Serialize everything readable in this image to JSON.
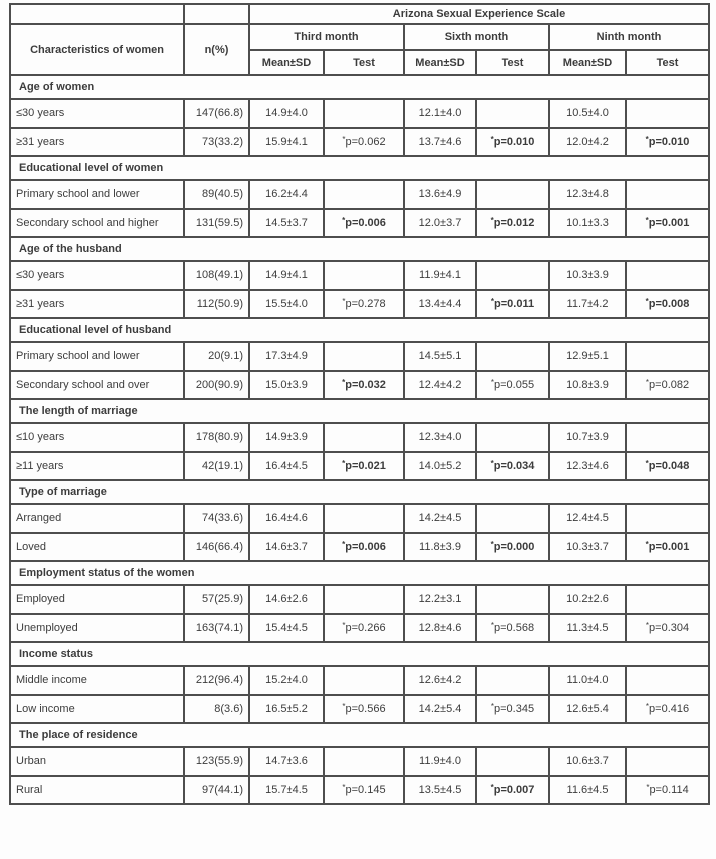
{
  "table": {
    "title": "Arizona Sexual Experience Scale",
    "col1_header": "Characteristics of women",
    "col2_header": "n(%)",
    "month_headers": [
      "Third month",
      "Sixth month",
      "Ninth month"
    ],
    "sub_headers": [
      "Mean±SD",
      "Test"
    ],
    "sections": [
      {
        "header": "Age of women",
        "rows": [
          {
            "label": "≤30 years",
            "n": "147(66.8)",
            "months": [
              {
                "mean": "14.9±4.0",
                "test": "",
                "test_bold": false
              },
              {
                "mean": "12.1±4.0",
                "test": "",
                "test_bold": false
              },
              {
                "mean": "10.5±4.0",
                "test": "",
                "test_bold": false
              }
            ]
          },
          {
            "label": "≥31 years",
            "n": "73(33.2)",
            "months": [
              {
                "mean": "15.9±4.1",
                "test": "*p=0.062",
                "test_bold": false
              },
              {
                "mean": "13.7±4.6",
                "test": "*p=0.010",
                "test_bold": true
              },
              {
                "mean": "12.0±4.2",
                "test": "*p=0.010",
                "test_bold": true
              }
            ]
          }
        ]
      },
      {
        "header": "Educational level of women",
        "rows": [
          {
            "label": "Primary school and lower",
            "n": "89(40.5)",
            "months": [
              {
                "mean": "16.2±4.4",
                "test": "",
                "test_bold": false
              },
              {
                "mean": "13.6±4.9",
                "test": "",
                "test_bold": false
              },
              {
                "mean": "12.3±4.8",
                "test": "",
                "test_bold": false
              }
            ]
          },
          {
            "label": "Secondary school and higher",
            "n": "131(59.5)",
            "months": [
              {
                "mean": "14.5±3.7",
                "test": "*p=0.006",
                "test_bold": true
              },
              {
                "mean": "12.0±3.7",
                "test": "*p=0.012",
                "test_bold": true
              },
              {
                "mean": "10.1±3.3",
                "test": "*p=0.001",
                "test_bold": true
              }
            ]
          }
        ]
      },
      {
        "header": "Age of the husband",
        "rows": [
          {
            "label": "≤30 years",
            "n": "108(49.1)",
            "months": [
              {
                "mean": "14.9±4.1",
                "test": "",
                "test_bold": false
              },
              {
                "mean": "11.9±4.1",
                "test": "",
                "test_bold": false
              },
              {
                "mean": "10.3±3.9",
                "test": "",
                "test_bold": false
              }
            ]
          },
          {
            "label": "≥31 years",
            "n": "112(50.9)",
            "months": [
              {
                "mean": "15.5±4.0",
                "test": "*p=0.278",
                "test_bold": false
              },
              {
                "mean": "13.4±4.4",
                "test": "*p=0.011",
                "test_bold": true
              },
              {
                "mean": "11.7±4.2",
                "test": "*p=0.008",
                "test_bold": true
              }
            ]
          }
        ]
      },
      {
        "header": "Educational level of husband",
        "rows": [
          {
            "label": "Primary school and lower",
            "n": "20(9.1)",
            "months": [
              {
                "mean": "17.3±4.9",
                "test": "",
                "test_bold": false
              },
              {
                "mean": "14.5±5.1",
                "test": "",
                "test_bold": false
              },
              {
                "mean": "12.9±5.1",
                "test": "",
                "test_bold": false
              }
            ]
          },
          {
            "label": "Secondary school and over",
            "n": "200(90.9)",
            "months": [
              {
                "mean": "15.0±3.9",
                "test": "*p=0.032",
                "test_bold": true
              },
              {
                "mean": "12.4±4.2",
                "test": "*p=0.055",
                "test_bold": false
              },
              {
                "mean": "10.8±3.9",
                "test": "*p=0.082",
                "test_bold": false
              }
            ]
          }
        ]
      },
      {
        "header": "The length of marriage",
        "rows": [
          {
            "label": "≤10 years",
            "n": "178(80.9)",
            "months": [
              {
                "mean": "14.9±3.9",
                "test": "",
                "test_bold": false
              },
              {
                "mean": "12.3±4.0",
                "test": "",
                "test_bold": false
              },
              {
                "mean": "10.7±3.9",
                "test": "",
                "test_bold": false
              }
            ]
          },
          {
            "label": "≥11 years",
            "n": "42(19.1)",
            "months": [
              {
                "mean": "16.4±4.5",
                "test": "*p=0.021",
                "test_bold": true
              },
              {
                "mean": "14.0±5.2",
                "test": "*p=0.034",
                "test_bold": true
              },
              {
                "mean": "12.3±4.6",
                "test": "*p=0.048",
                "test_bold": true
              }
            ]
          }
        ]
      },
      {
        "header": "Type of marriage",
        "rows": [
          {
            "label": "Arranged",
            "n": "74(33.6)",
            "months": [
              {
                "mean": "16.4±4.6",
                "test": "",
                "test_bold": false
              },
              {
                "mean": "14.2±4.5",
                "test": "",
                "test_bold": false
              },
              {
                "mean": "12.4±4.5",
                "test": "",
                "test_bold": false
              }
            ]
          },
          {
            "label": "Loved",
            "n": "146(66.4)",
            "months": [
              {
                "mean": "14.6±3.7",
                "test": "*p=0.006",
                "test_bold": true
              },
              {
                "mean": "11.8±3.9",
                "test": "*p=0.000",
                "test_bold": true
              },
              {
                "mean": "10.3±3.7",
                "test": "*p=0.001",
                "test_bold": true
              }
            ]
          }
        ]
      },
      {
        "header": "Employment status of the women",
        "rows": [
          {
            "label": "Employed",
            "n": "57(25.9)",
            "months": [
              {
                "mean": "14.6±2.6",
                "test": "",
                "test_bold": false
              },
              {
                "mean": "12.2±3.1",
                "test": "",
                "test_bold": false
              },
              {
                "mean": "10.2±2.6",
                "test": "",
                "test_bold": false
              }
            ]
          },
          {
            "label": "Unemployed",
            "n": "163(74.1)",
            "months": [
              {
                "mean": "15.4±4.5",
                "test": "*p=0.266",
                "test_bold": false
              },
              {
                "mean": "12.8±4.6",
                "test": "*p=0.568",
                "test_bold": false
              },
              {
                "mean": "11.3±4.5",
                "test": "*p=0.304",
                "test_bold": false
              }
            ]
          }
        ]
      },
      {
        "header": "Income status",
        "rows": [
          {
            "label": "Middle income",
            "n": "212(96.4)",
            "months": [
              {
                "mean": "15.2±4.0",
                "test": "",
                "test_bold": false
              },
              {
                "mean": "12.6±4.2",
                "test": "",
                "test_bold": false
              },
              {
                "mean": "11.0±4.0",
                "test": "",
                "test_bold": false
              }
            ]
          },
          {
            "label": "Low income",
            "n": "8(3.6)",
            "months": [
              {
                "mean": "16.5±5.2",
                "test": "*p=0.566",
                "test_bold": false
              },
              {
                "mean": "14.2±5.4",
                "test": "*p=0.345",
                "test_bold": false
              },
              {
                "mean": "12.6±5.4",
                "test": "*p=0.416",
                "test_bold": false
              }
            ]
          }
        ]
      },
      {
        "header": "The place of residence",
        "rows": [
          {
            "label": "Urban",
            "n": "123(55.9)",
            "months": [
              {
                "mean": "14.7±3.6",
                "test": "",
                "test_bold": false
              },
              {
                "mean": "11.9±4.0",
                "test": "",
                "test_bold": false
              },
              {
                "mean": "10.6±3.7",
                "test": "",
                "test_bold": false
              }
            ]
          },
          {
            "label": "Rural",
            "n": "97(44.1)",
            "months": [
              {
                "mean": "15.7±4.5",
                "test": "*p=0.145",
                "test_bold": false
              },
              {
                "mean": "13.5±4.5",
                "test": "*p=0.007",
                "test_bold": true
              },
              {
                "mean": "11.6±4.5",
                "test": "*p=0.114",
                "test_bold": false
              }
            ]
          }
        ]
      }
    ]
  },
  "colors": {
    "border": "#4e4e4e",
    "text": "#3c3c3c",
    "background": "#fdfdfd"
  }
}
